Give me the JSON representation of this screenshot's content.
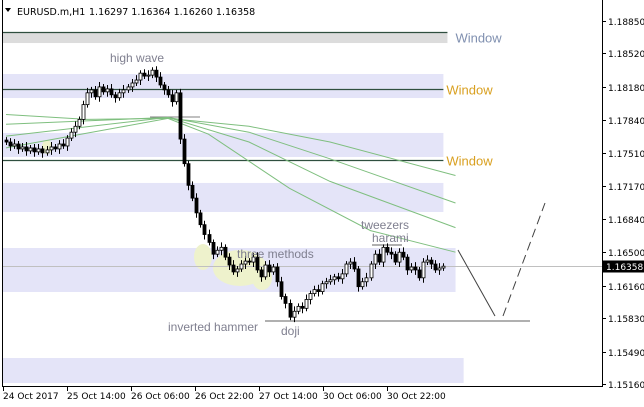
{
  "header": {
    "symbol": "EURUSD.m,H1",
    "ohlc_text": "1.16297 1.16364 1.16260 1.16358",
    "dropdown_icon": "triangle-down-icon"
  },
  "colors": {
    "zone": "#e4e4f8",
    "zone_grey": "#dcdcdc",
    "ma": "#7fbf7f",
    "window_orange": "#d9a020",
    "window_blue": "#8090b0",
    "annotation": "#7f7f8f",
    "highlight": "#eef2cc"
  },
  "chart_data": {
    "type": "candlestick",
    "symbol": "EURUSD.m",
    "timeframe": "H1",
    "ylim": [
      1.1508,
      1.1895
    ],
    "y_ticks": [
      "1.18850",
      "1.18520",
      "1.18180",
      "1.17840",
      "1.17510",
      "1.17170",
      "1.16840",
      "1.16500",
      "1.16160",
      "1.15830",
      "1.15490",
      "1.15160"
    ],
    "x_ticks": [
      "24 Oct 2017",
      "25 Oct 14:00",
      "26 Oct 06:00",
      "26 Oct 22:00",
      "27 Oct 14:00",
      "30 Oct 06:00",
      "30 Oct 22:00"
    ],
    "current_price": "1.16358",
    "close": [
      1.1762,
      1.1758,
      1.176,
      1.1755,
      1.1757,
      1.1753,
      1.1756,
      1.1752,
      1.1755,
      1.1751,
      1.1754,
      1.1757,
      1.1755,
      1.176,
      1.1758,
      1.1766,
      1.1772,
      1.1778,
      1.1785,
      1.18,
      1.1812,
      1.1815,
      1.1808,
      1.1818,
      1.1813,
      1.1816,
      1.181,
      1.1807,
      1.1812,
      1.1815,
      1.1818,
      1.1822,
      1.1825,
      1.1832,
      1.1829,
      1.183,
      1.1835,
      1.1828,
      1.182,
      1.1815,
      1.181,
      1.1803,
      1.1812,
      1.1765,
      1.174,
      1.1718,
      1.1705,
      1.169,
      1.1678,
      1.1668,
      1.166,
      1.1648,
      1.1652,
      1.1655,
      1.1645,
      1.1637,
      1.163,
      1.1633,
      1.1638,
      1.1641,
      1.164,
      1.1645,
      1.1632,
      1.1625,
      1.1637,
      1.163,
      1.1635,
      1.162,
      1.1605,
      1.1598,
      1.1584,
      1.159,
      1.1595,
      1.1593,
      1.1602,
      1.1608,
      1.1612,
      1.161,
      1.1618,
      1.162,
      1.1622,
      1.1625,
      1.1623,
      1.1628,
      1.1638,
      1.164,
      1.1633,
      1.1615,
      1.162,
      1.1624,
      1.1638,
      1.1648,
      1.164,
      1.1655,
      1.165,
      1.1648,
      1.164,
      1.165,
      1.1645,
      1.1632,
      1.1635,
      1.1632,
      1.1624,
      1.164,
      1.1642,
      1.1638,
      1.1632,
      1.1634,
      1.16358
    ],
    "moving_averages": [
      {
        "points": [
          [
            0,
            1.179
          ],
          [
            20,
            1.1785
          ],
          [
            40,
            1.1786
          ],
          [
            50,
            1.177
          ],
          [
            70,
            1.1715
          ],
          [
            90,
            1.1672
          ],
          [
            111,
            1.165
          ]
        ]
      },
      {
        "points": [
          [
            0,
            1.178
          ],
          [
            40,
            1.1787
          ],
          [
            60,
            1.1762
          ],
          [
            80,
            1.1722
          ],
          [
            111,
            1.1675
          ]
        ]
      },
      {
        "points": [
          [
            0,
            1.1768
          ],
          [
            40,
            1.1787
          ],
          [
            60,
            1.1772
          ],
          [
            80,
            1.1745
          ],
          [
            111,
            1.17
          ]
        ]
      },
      {
        "points": [
          [
            0,
            1.1756
          ],
          [
            40,
            1.1786
          ],
          [
            60,
            1.1778
          ],
          [
            80,
            1.1762
          ],
          [
            111,
            1.1728
          ]
        ]
      }
    ],
    "zones": [
      {
        "from": 1.18728,
        "to": 1.18626,
        "end_bar": 109,
        "grey": true
      },
      {
        "from": 1.18311,
        "to": 1.18067,
        "end_bar": 108
      },
      {
        "from": 1.17712,
        "to": 1.17468,
        "end_bar": 108
      },
      {
        "from": 1.17204,
        "to": 1.16909,
        "end_bar": 108
      },
      {
        "from": 1.16543,
        "to": 1.16096,
        "end_bar": 111
      },
      {
        "from": 1.15425,
        "to": 1.15171,
        "end_bar": 113
      }
    ],
    "levels": [
      {
        "price": 1.18738,
        "end_bar": 109,
        "label": "Window",
        "color": "#8090b0"
      },
      {
        "price": 1.18159,
        "end_bar": 108,
        "label": "Window",
        "color": "#d9a020"
      },
      {
        "price": 1.17437,
        "end_bar": 108,
        "label": "Window",
        "color": "#d9a020"
      }
    ],
    "annotations": [
      "high wave",
      "three methods",
      "inverted hammer",
      "doji",
      "tweezers",
      "harami"
    ]
  }
}
